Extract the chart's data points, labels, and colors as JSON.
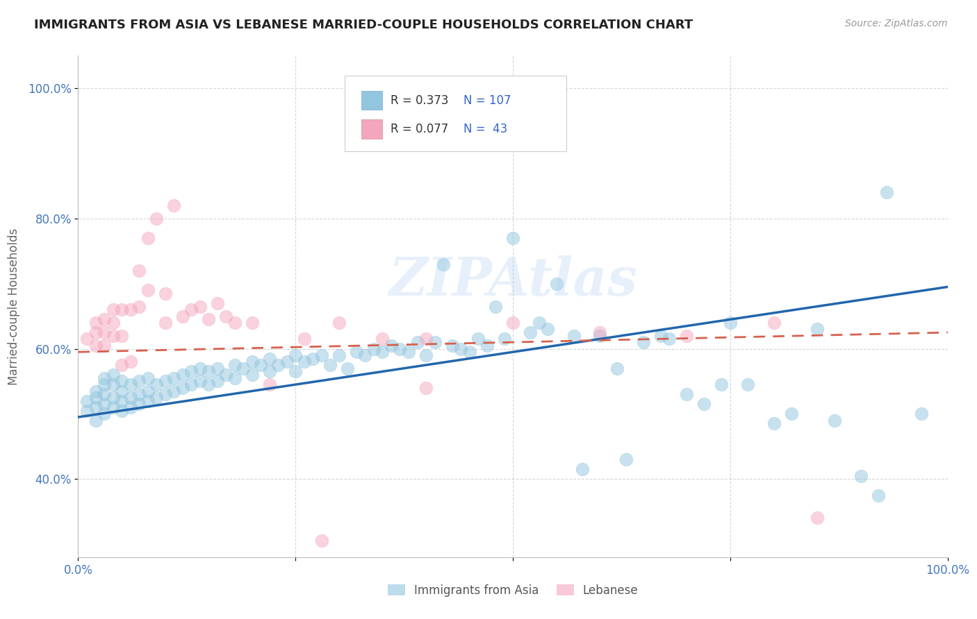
{
  "title": "IMMIGRANTS FROM ASIA VS LEBANESE MARRIED-COUPLE HOUSEHOLDS CORRELATION CHART",
  "source": "Source: ZipAtlas.com",
  "ylabel": "Married-couple Households",
  "legend_r1": "R = 0.373",
  "legend_n1": "N = 107",
  "legend_r2": "R = 0.077",
  "legend_n2": "N =  43",
  "legend_label1": "Immigrants from Asia",
  "legend_label2": "Lebanese",
  "blue_color": "#92c5de",
  "pink_color": "#f4a6be",
  "blue_line_color": "#2166ac",
  "pink_line_color": "#d6604d",
  "watermark": "ZIPAtlas",
  "xlim": [
    0.0,
    1.0
  ],
  "ylim": [
    0.28,
    1.05
  ],
  "yticks": [
    0.4,
    0.6,
    0.8,
    1.0
  ],
  "ytick_labels": [
    "40.0%",
    "60.0%",
    "80.0%",
    "100.0%"
  ],
  "blue_trend_x": [
    0.0,
    1.0
  ],
  "blue_trend_y": [
    0.495,
    0.695
  ],
  "pink_trend_x": [
    0.0,
    1.0
  ],
  "pink_trend_y": [
    0.595,
    0.625
  ],
  "blue_scatter_x": [
    0.01,
    0.01,
    0.02,
    0.02,
    0.02,
    0.02,
    0.03,
    0.03,
    0.03,
    0.03,
    0.03,
    0.04,
    0.04,
    0.04,
    0.04,
    0.05,
    0.05,
    0.05,
    0.05,
    0.06,
    0.06,
    0.06,
    0.07,
    0.07,
    0.07,
    0.08,
    0.08,
    0.08,
    0.09,
    0.09,
    0.1,
    0.1,
    0.11,
    0.11,
    0.12,
    0.12,
    0.13,
    0.13,
    0.14,
    0.14,
    0.15,
    0.15,
    0.16,
    0.16,
    0.17,
    0.18,
    0.18,
    0.19,
    0.2,
    0.2,
    0.21,
    0.22,
    0.22,
    0.23,
    0.24,
    0.25,
    0.25,
    0.26,
    0.27,
    0.28,
    0.29,
    0.3,
    0.31,
    0.32,
    0.33,
    0.34,
    0.35,
    0.36,
    0.37,
    0.38,
    0.39,
    0.4,
    0.41,
    0.42,
    0.43,
    0.44,
    0.45,
    0.46,
    0.47,
    0.48,
    0.49,
    0.5,
    0.52,
    0.53,
    0.54,
    0.55,
    0.57,
    0.58,
    0.6,
    0.62,
    0.63,
    0.65,
    0.67,
    0.68,
    0.7,
    0.72,
    0.74,
    0.75,
    0.77,
    0.8,
    0.82,
    0.85,
    0.87,
    0.9,
    0.92,
    0.93,
    0.97
  ],
  "blue_scatter_y": [
    0.505,
    0.52,
    0.49,
    0.51,
    0.525,
    0.535,
    0.5,
    0.515,
    0.53,
    0.545,
    0.555,
    0.51,
    0.525,
    0.545,
    0.56,
    0.505,
    0.52,
    0.535,
    0.55,
    0.51,
    0.525,
    0.545,
    0.515,
    0.53,
    0.55,
    0.52,
    0.535,
    0.555,
    0.525,
    0.545,
    0.53,
    0.55,
    0.535,
    0.555,
    0.54,
    0.56,
    0.545,
    0.565,
    0.55,
    0.57,
    0.545,
    0.565,
    0.55,
    0.57,
    0.56,
    0.555,
    0.575,
    0.57,
    0.56,
    0.58,
    0.575,
    0.565,
    0.585,
    0.575,
    0.58,
    0.565,
    0.59,
    0.58,
    0.585,
    0.59,
    0.575,
    0.59,
    0.57,
    0.595,
    0.59,
    0.6,
    0.595,
    0.605,
    0.6,
    0.595,
    0.61,
    0.59,
    0.61,
    0.73,
    0.605,
    0.6,
    0.595,
    0.615,
    0.605,
    0.665,
    0.615,
    0.77,
    0.625,
    0.64,
    0.63,
    0.7,
    0.62,
    0.415,
    0.62,
    0.57,
    0.43,
    0.61,
    0.62,
    0.615,
    0.53,
    0.515,
    0.545,
    0.64,
    0.545,
    0.485,
    0.5,
    0.63,
    0.49,
    0.405,
    0.375,
    0.84,
    0.5
  ],
  "pink_scatter_x": [
    0.01,
    0.02,
    0.02,
    0.02,
    0.03,
    0.03,
    0.03,
    0.04,
    0.04,
    0.04,
    0.05,
    0.05,
    0.05,
    0.06,
    0.06,
    0.07,
    0.07,
    0.08,
    0.08,
    0.09,
    0.1,
    0.1,
    0.11,
    0.12,
    0.13,
    0.14,
    0.15,
    0.16,
    0.17,
    0.18,
    0.2,
    0.22,
    0.26,
    0.28,
    0.3,
    0.35,
    0.4,
    0.4,
    0.5,
    0.6,
    0.7,
    0.8,
    0.85
  ],
  "pink_scatter_y": [
    0.615,
    0.605,
    0.625,
    0.64,
    0.605,
    0.625,
    0.645,
    0.62,
    0.64,
    0.66,
    0.575,
    0.62,
    0.66,
    0.58,
    0.66,
    0.665,
    0.72,
    0.69,
    0.77,
    0.8,
    0.64,
    0.685,
    0.82,
    0.65,
    0.66,
    0.665,
    0.645,
    0.67,
    0.65,
    0.64,
    0.64,
    0.545,
    0.615,
    0.305,
    0.64,
    0.615,
    0.615,
    0.54,
    0.64,
    0.625,
    0.62,
    0.64,
    0.34
  ]
}
